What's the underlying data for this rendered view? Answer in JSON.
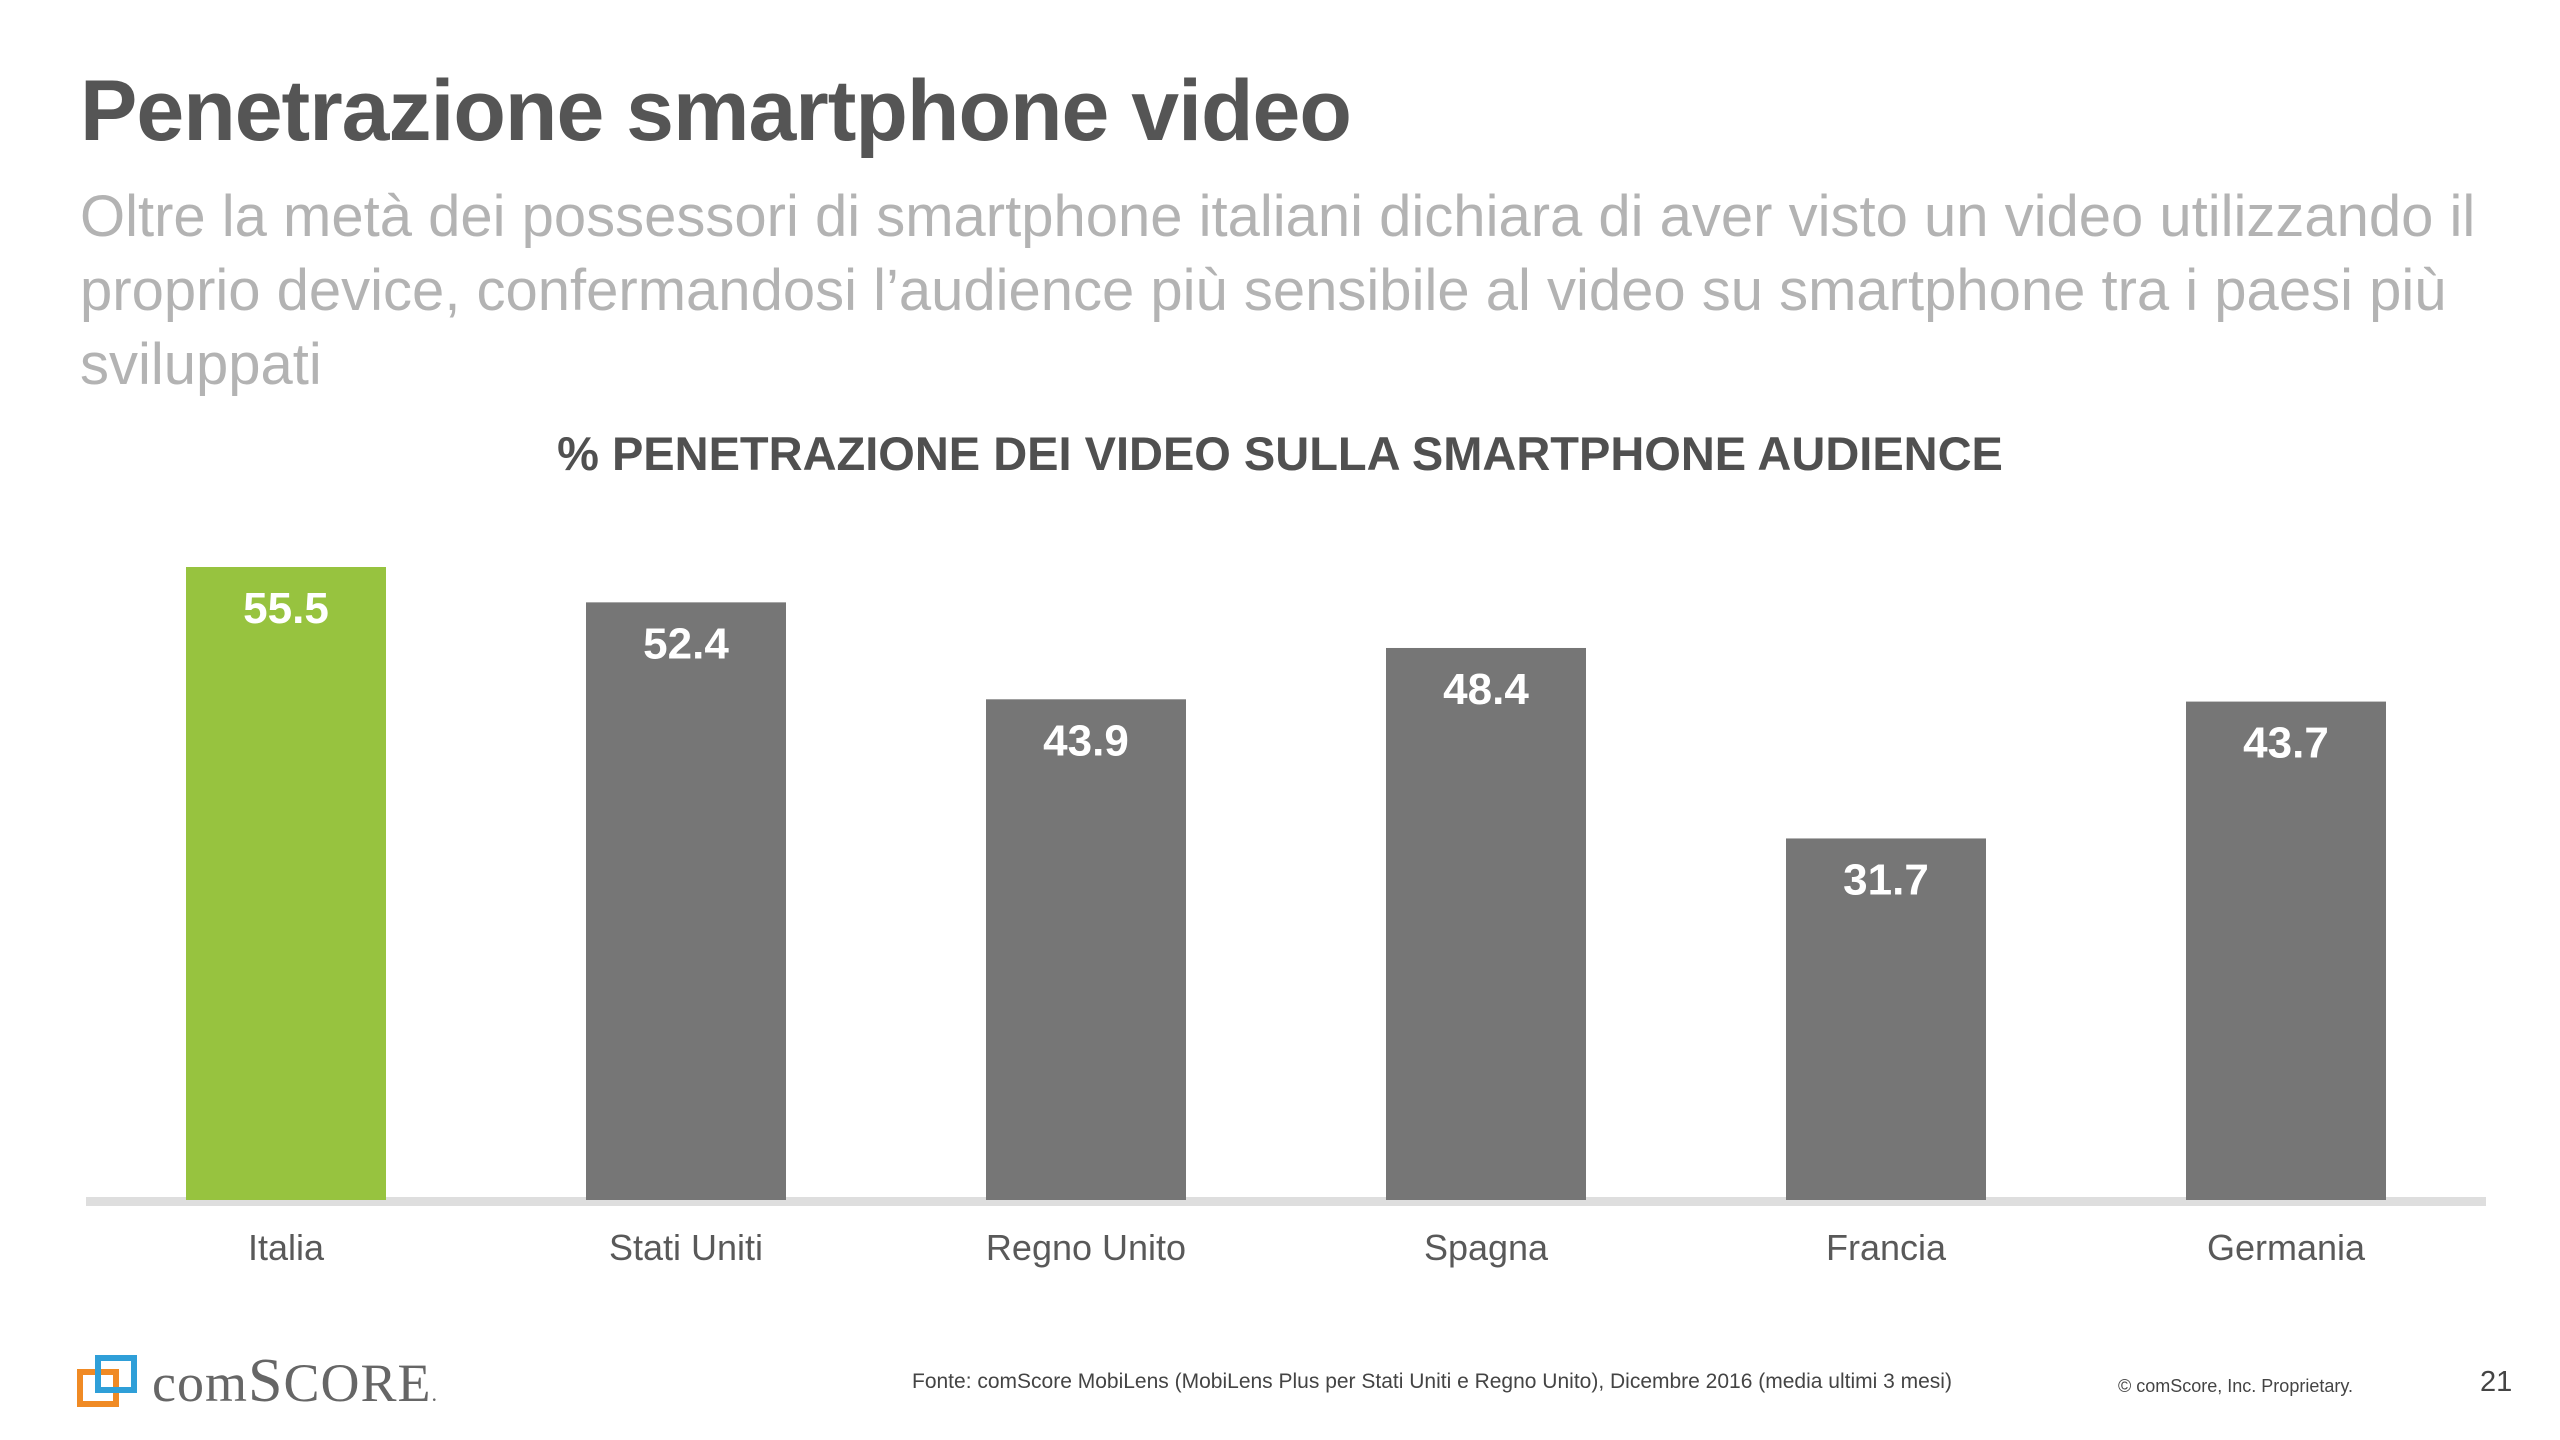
{
  "header": {
    "title": "Penetrazione smartphone video",
    "subtitle": "Oltre la metà dei possessori di smartphone italiani dichiara di aver visto un video utilizzando il proprio device, confermandosi l’audience più sensibile al video su smartphone tra i paesi più sviluppati"
  },
  "chart_data": {
    "type": "bar",
    "title": "% PENETRAZIONE DEI VIDEO SULLA SMARTPHONE AUDIENCE",
    "categories": [
      "Italia",
      "Stati Uniti",
      "Regno Unito",
      "Spagna",
      "Francia",
      "Germania"
    ],
    "values": [
      55.5,
      52.4,
      43.9,
      48.4,
      31.7,
      43.7
    ],
    "value_labels": [
      "55.5",
      "52.4",
      "43.9",
      "48.4",
      "31.7",
      "43.7"
    ],
    "ylim": [
      0,
      55.5
    ],
    "xlabel": "",
    "ylabel": "",
    "grid": false,
    "legend": "none",
    "colors": {
      "highlight": "#97c33f",
      "default": "#767676",
      "baseline": "#dedede",
      "value_label": "#ffffff",
      "category_label": "#595959"
    },
    "highlight_index": 0
  },
  "footer": {
    "logo_text_prefix": "com",
    "logo_text_big": "S",
    "logo_text_suffix": "CORE",
    "logo_text_mark": ".",
    "source": "Fonte: comScore MobiLens (MobiLens Plus per Stati Uniti e Regno Unito), Dicembre 2016 (media ultimi 3 mesi)",
    "copyright": "© comScore, Inc. Proprietary.",
    "page_number": "21"
  }
}
